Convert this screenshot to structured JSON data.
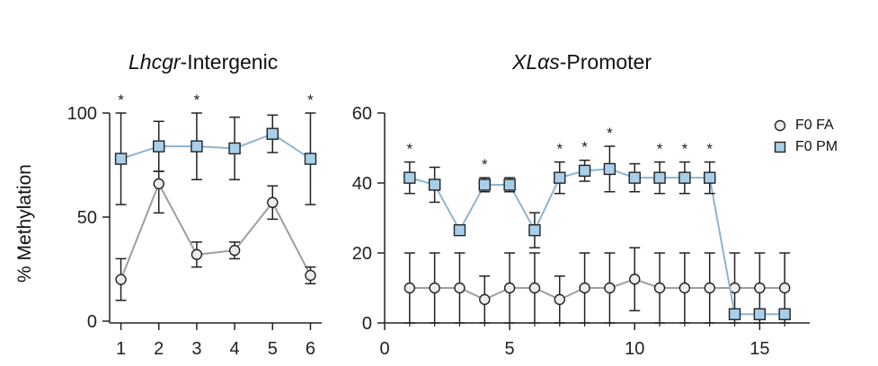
{
  "chart_data": [
    {
      "type": "line",
      "title": {
        "gene": "Lhcgr",
        "suffix": "-Intergenic"
      },
      "xlabel": "",
      "ylabel": "% Methylation",
      "xlim": [
        0.75,
        6.25
      ],
      "ylim": [
        0,
        100
      ],
      "xticks": [
        1,
        2,
        3,
        4,
        5,
        6
      ],
      "yticks": [
        0,
        50,
        100
      ],
      "series": [
        {
          "name": "F0 FA",
          "marker": "circle",
          "color": "#9e9e9e",
          "fill": "#ececec",
          "x": [
            1,
            2,
            3,
            4,
            5,
            6
          ],
          "y": [
            20,
            66,
            32,
            34,
            57,
            22
          ],
          "err_low": [
            10,
            14,
            6,
            4,
            8,
            4
          ],
          "err_high": [
            10,
            6,
            6,
            4,
            8,
            4
          ]
        },
        {
          "name": "F0 PM",
          "marker": "square",
          "color": "#8cb4d2",
          "fill": "#a7cfe9",
          "x": [
            1,
            2,
            3,
            4,
            5,
            6
          ],
          "y": [
            78,
            84,
            84,
            83,
            90,
            78
          ],
          "err_low": [
            22,
            12,
            16,
            15,
            9,
            22
          ],
          "err_high": [
            22,
            12,
            16,
            15,
            9,
            22
          ]
        }
      ],
      "significance": {
        "x": [
          1,
          3,
          6
        ],
        "label": "*"
      }
    },
    {
      "type": "line",
      "title": {
        "gene": "XLαs",
        "suffix": "-Promoter"
      },
      "xlabel": "",
      "ylabel": "",
      "xlim": [
        0,
        17
      ],
      "ylim": [
        0,
        60
      ],
      "xticks": [
        0,
        5,
        10,
        15
      ],
      "yticks": [
        0,
        20,
        40,
        60
      ],
      "series": [
        {
          "name": "F0 FA",
          "marker": "circle",
          "color": "#9e9e9e",
          "fill": "#ececec",
          "x": [
            1,
            2,
            3,
            4,
            5,
            6,
            7,
            8,
            9,
            10,
            11,
            12,
            13,
            14,
            15,
            16
          ],
          "y": [
            10,
            10,
            10,
            6.7,
            10,
            10,
            6.7,
            10,
            10,
            12.5,
            10,
            10,
            10,
            10,
            10,
            10
          ],
          "err_low": [
            10,
            10,
            10,
            6.7,
            10,
            10,
            6.7,
            10,
            10,
            9,
            10,
            10,
            10,
            10,
            10,
            10
          ],
          "err_high": [
            10,
            10,
            10,
            6.7,
            10,
            10,
            6.7,
            10,
            10,
            9,
            10,
            10,
            10,
            10,
            10,
            10
          ]
        },
        {
          "name": "F0 PM",
          "marker": "square",
          "color": "#8cb4d2",
          "fill": "#a7cfe9",
          "x": [
            1,
            2,
            3,
            4,
            5,
            6,
            7,
            8,
            9,
            10,
            11,
            12,
            13,
            14,
            15,
            16
          ],
          "y": [
            41.5,
            39.5,
            26.5,
            39.5,
            39.5,
            26.5,
            41.5,
            43.5,
            44,
            41.5,
            41.5,
            41.5,
            41.5,
            2.5,
            2.5,
            2.5
          ],
          "err_low": [
            4.5,
            5,
            0,
            2,
            2,
            5,
            4.5,
            3,
            6.5,
            4,
            4.5,
            4.5,
            4.5,
            0,
            0,
            0
          ],
          "err_high": [
            4.5,
            5,
            0,
            2,
            2,
            5,
            4.5,
            3,
            6.5,
            4,
            4.5,
            4.5,
            4.5,
            0,
            0,
            0
          ]
        }
      ],
      "significance": {
        "x": [
          1,
          4,
          7,
          8,
          9,
          11,
          12,
          13
        ],
        "label": "*"
      }
    }
  ],
  "legend": {
    "position": "top-right",
    "items": [
      {
        "label": "F0 FA",
        "marker": "circle"
      },
      {
        "label": "F0 PM",
        "marker": "square"
      }
    ]
  }
}
